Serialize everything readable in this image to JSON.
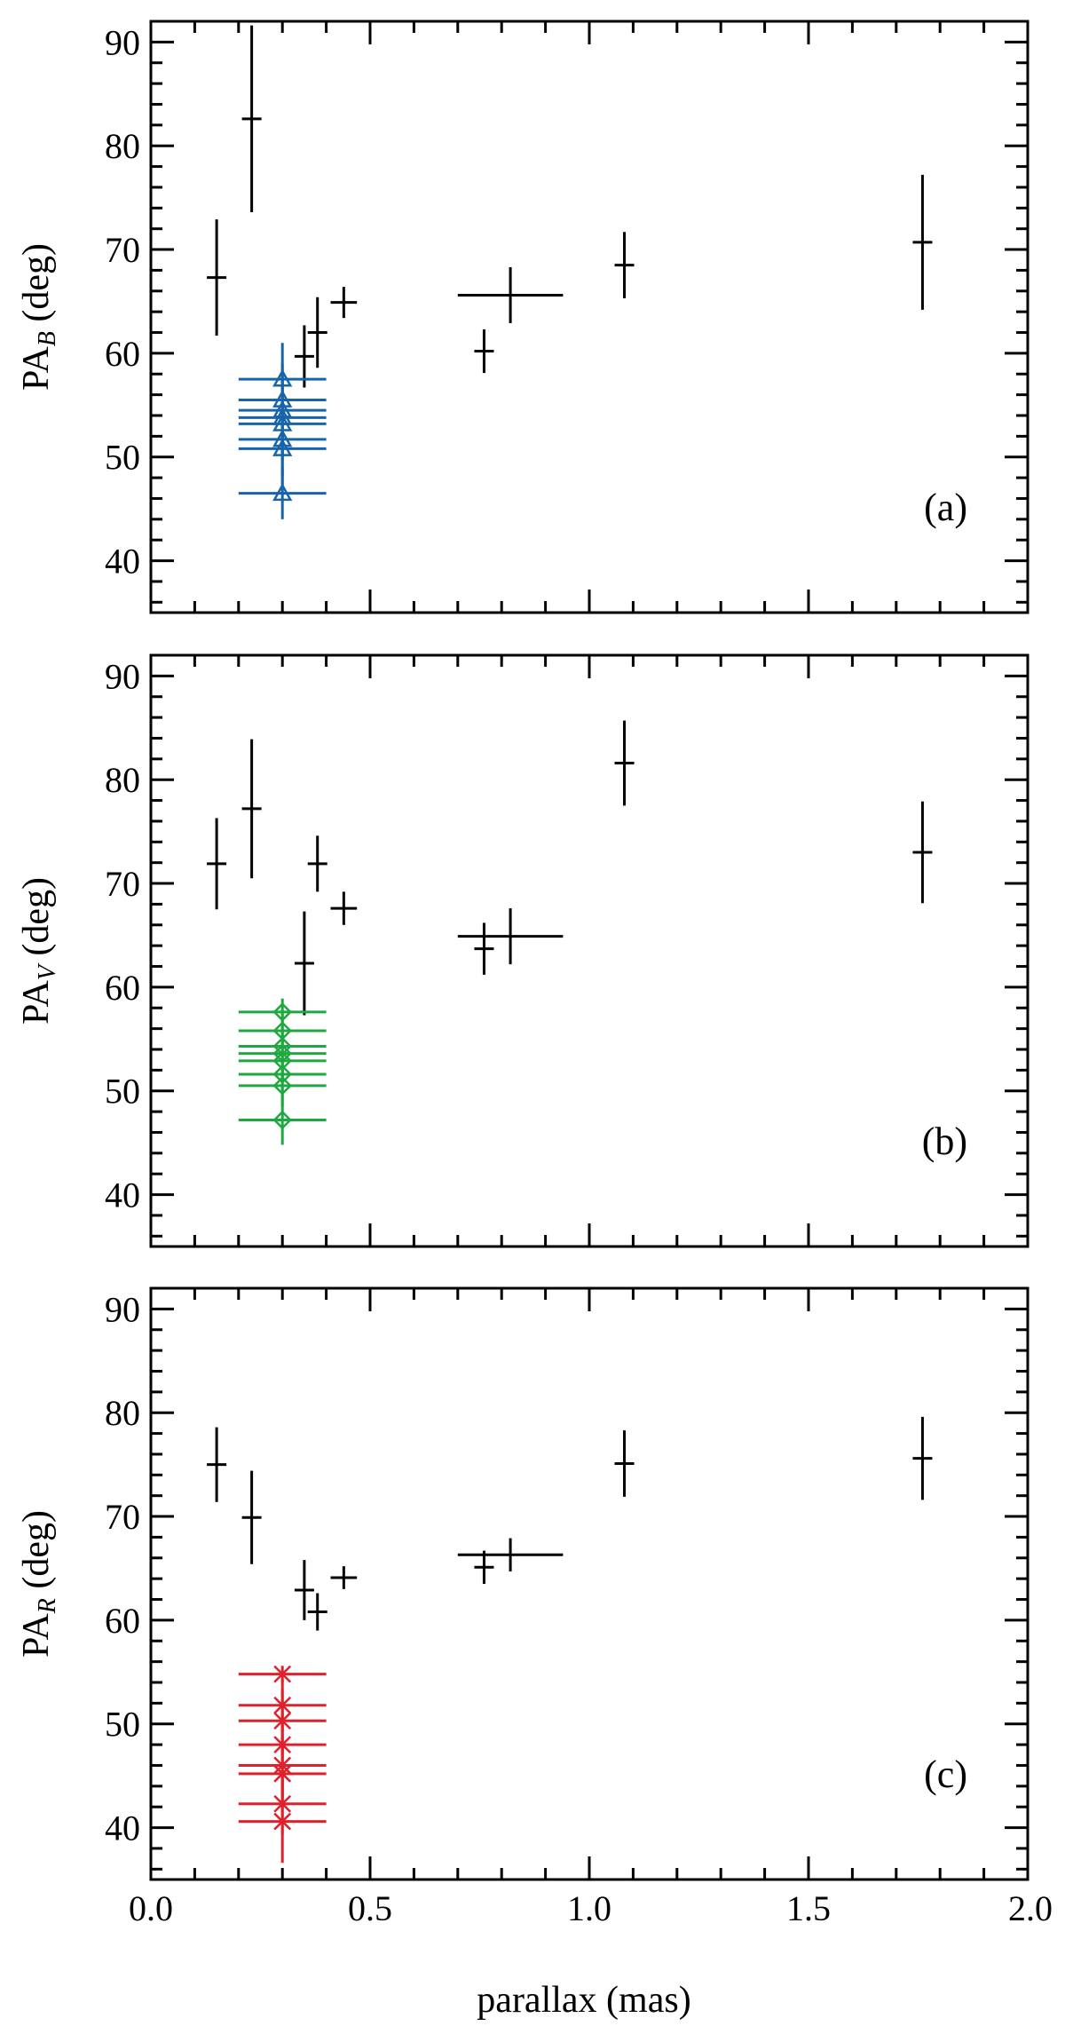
{
  "chart_data": {
    "type": "scatter",
    "xlabel": "parallax (mas)",
    "xlim": [
      0,
      2
    ],
    "x_ticks": [
      "0.0",
      "0.5",
      "1.0",
      "1.5",
      "2.0"
    ],
    "y_ticks": [
      "40",
      "50",
      "60",
      "70",
      "80",
      "90"
    ],
    "grid": false,
    "panels": [
      {
        "id": "a",
        "tag": "(a)",
        "ylabel_main": "PA",
        "ylabel_sub": "B",
        "ylabel_unit": " (deg)",
        "ylim": [
          35,
          92
        ],
        "highlight_color": "#1764ab",
        "highlight_marker": "triangle",
        "series": [
          {
            "group": "field",
            "points": [
              {
                "x": 0.15,
                "y": 67.3,
                "xerr": 0.0,
                "yerr": 5.6
              },
              {
                "x": 0.23,
                "y": 82.6,
                "xerr": 0.0,
                "yerr": 9.0
              },
              {
                "x": 0.35,
                "y": 59.7,
                "xerr": 0.0,
                "yerr": 3.0
              },
              {
                "x": 0.38,
                "y": 62.0,
                "xerr": 0.0,
                "yerr": 3.4
              },
              {
                "x": 0.44,
                "y": 64.9,
                "xerr": 0.03,
                "yerr": 1.5
              },
              {
                "x": 0.76,
                "y": 60.2,
                "xerr": 0.0,
                "yerr": 2.1
              },
              {
                "x": 0.82,
                "y": 65.6,
                "xerr": 0.12,
                "yerr": 2.7
              },
              {
                "x": 1.08,
                "y": 68.5,
                "xerr": 0.0,
                "yerr": 3.2
              },
              {
                "x": 1.76,
                "y": 70.7,
                "xerr": 0.0,
                "yerr": 6.5
              }
            ]
          },
          {
            "group": "cluster",
            "points": [
              {
                "x": 0.3,
                "y": 57.5,
                "xerr": 0.1,
                "yerr": 3.5
              },
              {
                "x": 0.3,
                "y": 55.5,
                "xerr": 0.1,
                "yerr": 3.5
              },
              {
                "x": 0.3,
                "y": 54.5,
                "xerr": 0.1,
                "yerr": 3.5
              },
              {
                "x": 0.3,
                "y": 53.8,
                "xerr": 0.1,
                "yerr": 3.5
              },
              {
                "x": 0.3,
                "y": 53.2,
                "xerr": 0.1,
                "yerr": 3.5
              },
              {
                "x": 0.3,
                "y": 51.7,
                "xerr": 0.1,
                "yerr": 3.5
              },
              {
                "x": 0.3,
                "y": 50.8,
                "xerr": 0.1,
                "yerr": 3.5
              },
              {
                "x": 0.3,
                "y": 46.5,
                "xerr": 0.1,
                "yerr": 2.5
              }
            ]
          }
        ]
      },
      {
        "id": "b",
        "tag": "(b)",
        "ylabel_main": "PA",
        "ylabel_sub": "V",
        "ylabel_unit": " (deg)",
        "ylim": [
          35,
          92
        ],
        "highlight_color": "#20a840",
        "highlight_marker": "diamond",
        "series": [
          {
            "group": "field",
            "points": [
              {
                "x": 0.15,
                "y": 71.9,
                "xerr": 0.0,
                "yerr": 4.4
              },
              {
                "x": 0.23,
                "y": 77.2,
                "xerr": 0.0,
                "yerr": 6.7
              },
              {
                "x": 0.35,
                "y": 62.3,
                "xerr": 0.0,
                "yerr": 5.0
              },
              {
                "x": 0.38,
                "y": 71.9,
                "xerr": 0.0,
                "yerr": 2.7
              },
              {
                "x": 0.44,
                "y": 67.6,
                "xerr": 0.03,
                "yerr": 1.6
              },
              {
                "x": 0.76,
                "y": 63.7,
                "xerr": 0.0,
                "yerr": 2.5
              },
              {
                "x": 0.82,
                "y": 64.9,
                "xerr": 0.12,
                "yerr": 2.7
              },
              {
                "x": 1.08,
                "y": 81.6,
                "xerr": 0.0,
                "yerr": 4.1
              },
              {
                "x": 1.76,
                "y": 73.0,
                "xerr": 0.0,
                "yerr": 4.9
              }
            ]
          },
          {
            "group": "cluster",
            "points": [
              {
                "x": 0.3,
                "y": 57.6,
                "xerr": 0.1,
                "yerr": 1.3
              },
              {
                "x": 0.3,
                "y": 55.8,
                "xerr": 0.1,
                "yerr": 2.0
              },
              {
                "x": 0.3,
                "y": 54.3,
                "xerr": 0.1,
                "yerr": 2.0
              },
              {
                "x": 0.3,
                "y": 53.6,
                "xerr": 0.1,
                "yerr": 2.0
              },
              {
                "x": 0.3,
                "y": 52.9,
                "xerr": 0.1,
                "yerr": 2.0
              },
              {
                "x": 0.3,
                "y": 51.6,
                "xerr": 0.1,
                "yerr": 2.0
              },
              {
                "x": 0.3,
                "y": 50.5,
                "xerr": 0.1,
                "yerr": 2.0
              },
              {
                "x": 0.3,
                "y": 47.2,
                "xerr": 0.1,
                "yerr": 2.4
              }
            ]
          }
        ]
      },
      {
        "id": "c",
        "tag": "(c)",
        "ylabel_main": "PA",
        "ylabel_sub": "R",
        "ylabel_unit": " (deg)",
        "ylim": [
          35,
          92
        ],
        "highlight_color": "#e0202a",
        "highlight_marker": "asterisk",
        "series": [
          {
            "group": "field",
            "points": [
              {
                "x": 0.15,
                "y": 75.0,
                "xerr": 0.0,
                "yerr": 3.6
              },
              {
                "x": 0.23,
                "y": 69.9,
                "xerr": 0.0,
                "yerr": 4.5
              },
              {
                "x": 0.35,
                "y": 62.9,
                "xerr": 0.0,
                "yerr": 2.9
              },
              {
                "x": 0.38,
                "y": 60.8,
                "xerr": 0.0,
                "yerr": 1.8
              },
              {
                "x": 0.44,
                "y": 64.1,
                "xerr": 0.03,
                "yerr": 1.1
              },
              {
                "x": 0.76,
                "y": 65.1,
                "xerr": 0.0,
                "yerr": 1.6
              },
              {
                "x": 0.82,
                "y": 66.3,
                "xerr": 0.12,
                "yerr": 1.6
              },
              {
                "x": 1.08,
                "y": 75.1,
                "xerr": 0.0,
                "yerr": 3.2
              },
              {
                "x": 1.76,
                "y": 75.6,
                "xerr": 0.0,
                "yerr": 4.0
              }
            ]
          },
          {
            "group": "cluster",
            "points": [
              {
                "x": 0.3,
                "y": 54.8,
                "xerr": 0.1,
                "yerr": 0.8
              },
              {
                "x": 0.3,
                "y": 51.8,
                "xerr": 0.1,
                "yerr": 2.5
              },
              {
                "x": 0.3,
                "y": 50.3,
                "xerr": 0.1,
                "yerr": 3.0
              },
              {
                "x": 0.3,
                "y": 48.0,
                "xerr": 0.1,
                "yerr": 3.0
              },
              {
                "x": 0.3,
                "y": 46.0,
                "xerr": 0.1,
                "yerr": 3.0
              },
              {
                "x": 0.3,
                "y": 45.2,
                "xerr": 0.1,
                "yerr": 3.0
              },
              {
                "x": 0.3,
                "y": 42.3,
                "xerr": 0.1,
                "yerr": 3.0
              },
              {
                "x": 0.3,
                "y": 40.6,
                "xerr": 0.1,
                "yerr": 4.0
              }
            ]
          }
        ]
      }
    ]
  }
}
